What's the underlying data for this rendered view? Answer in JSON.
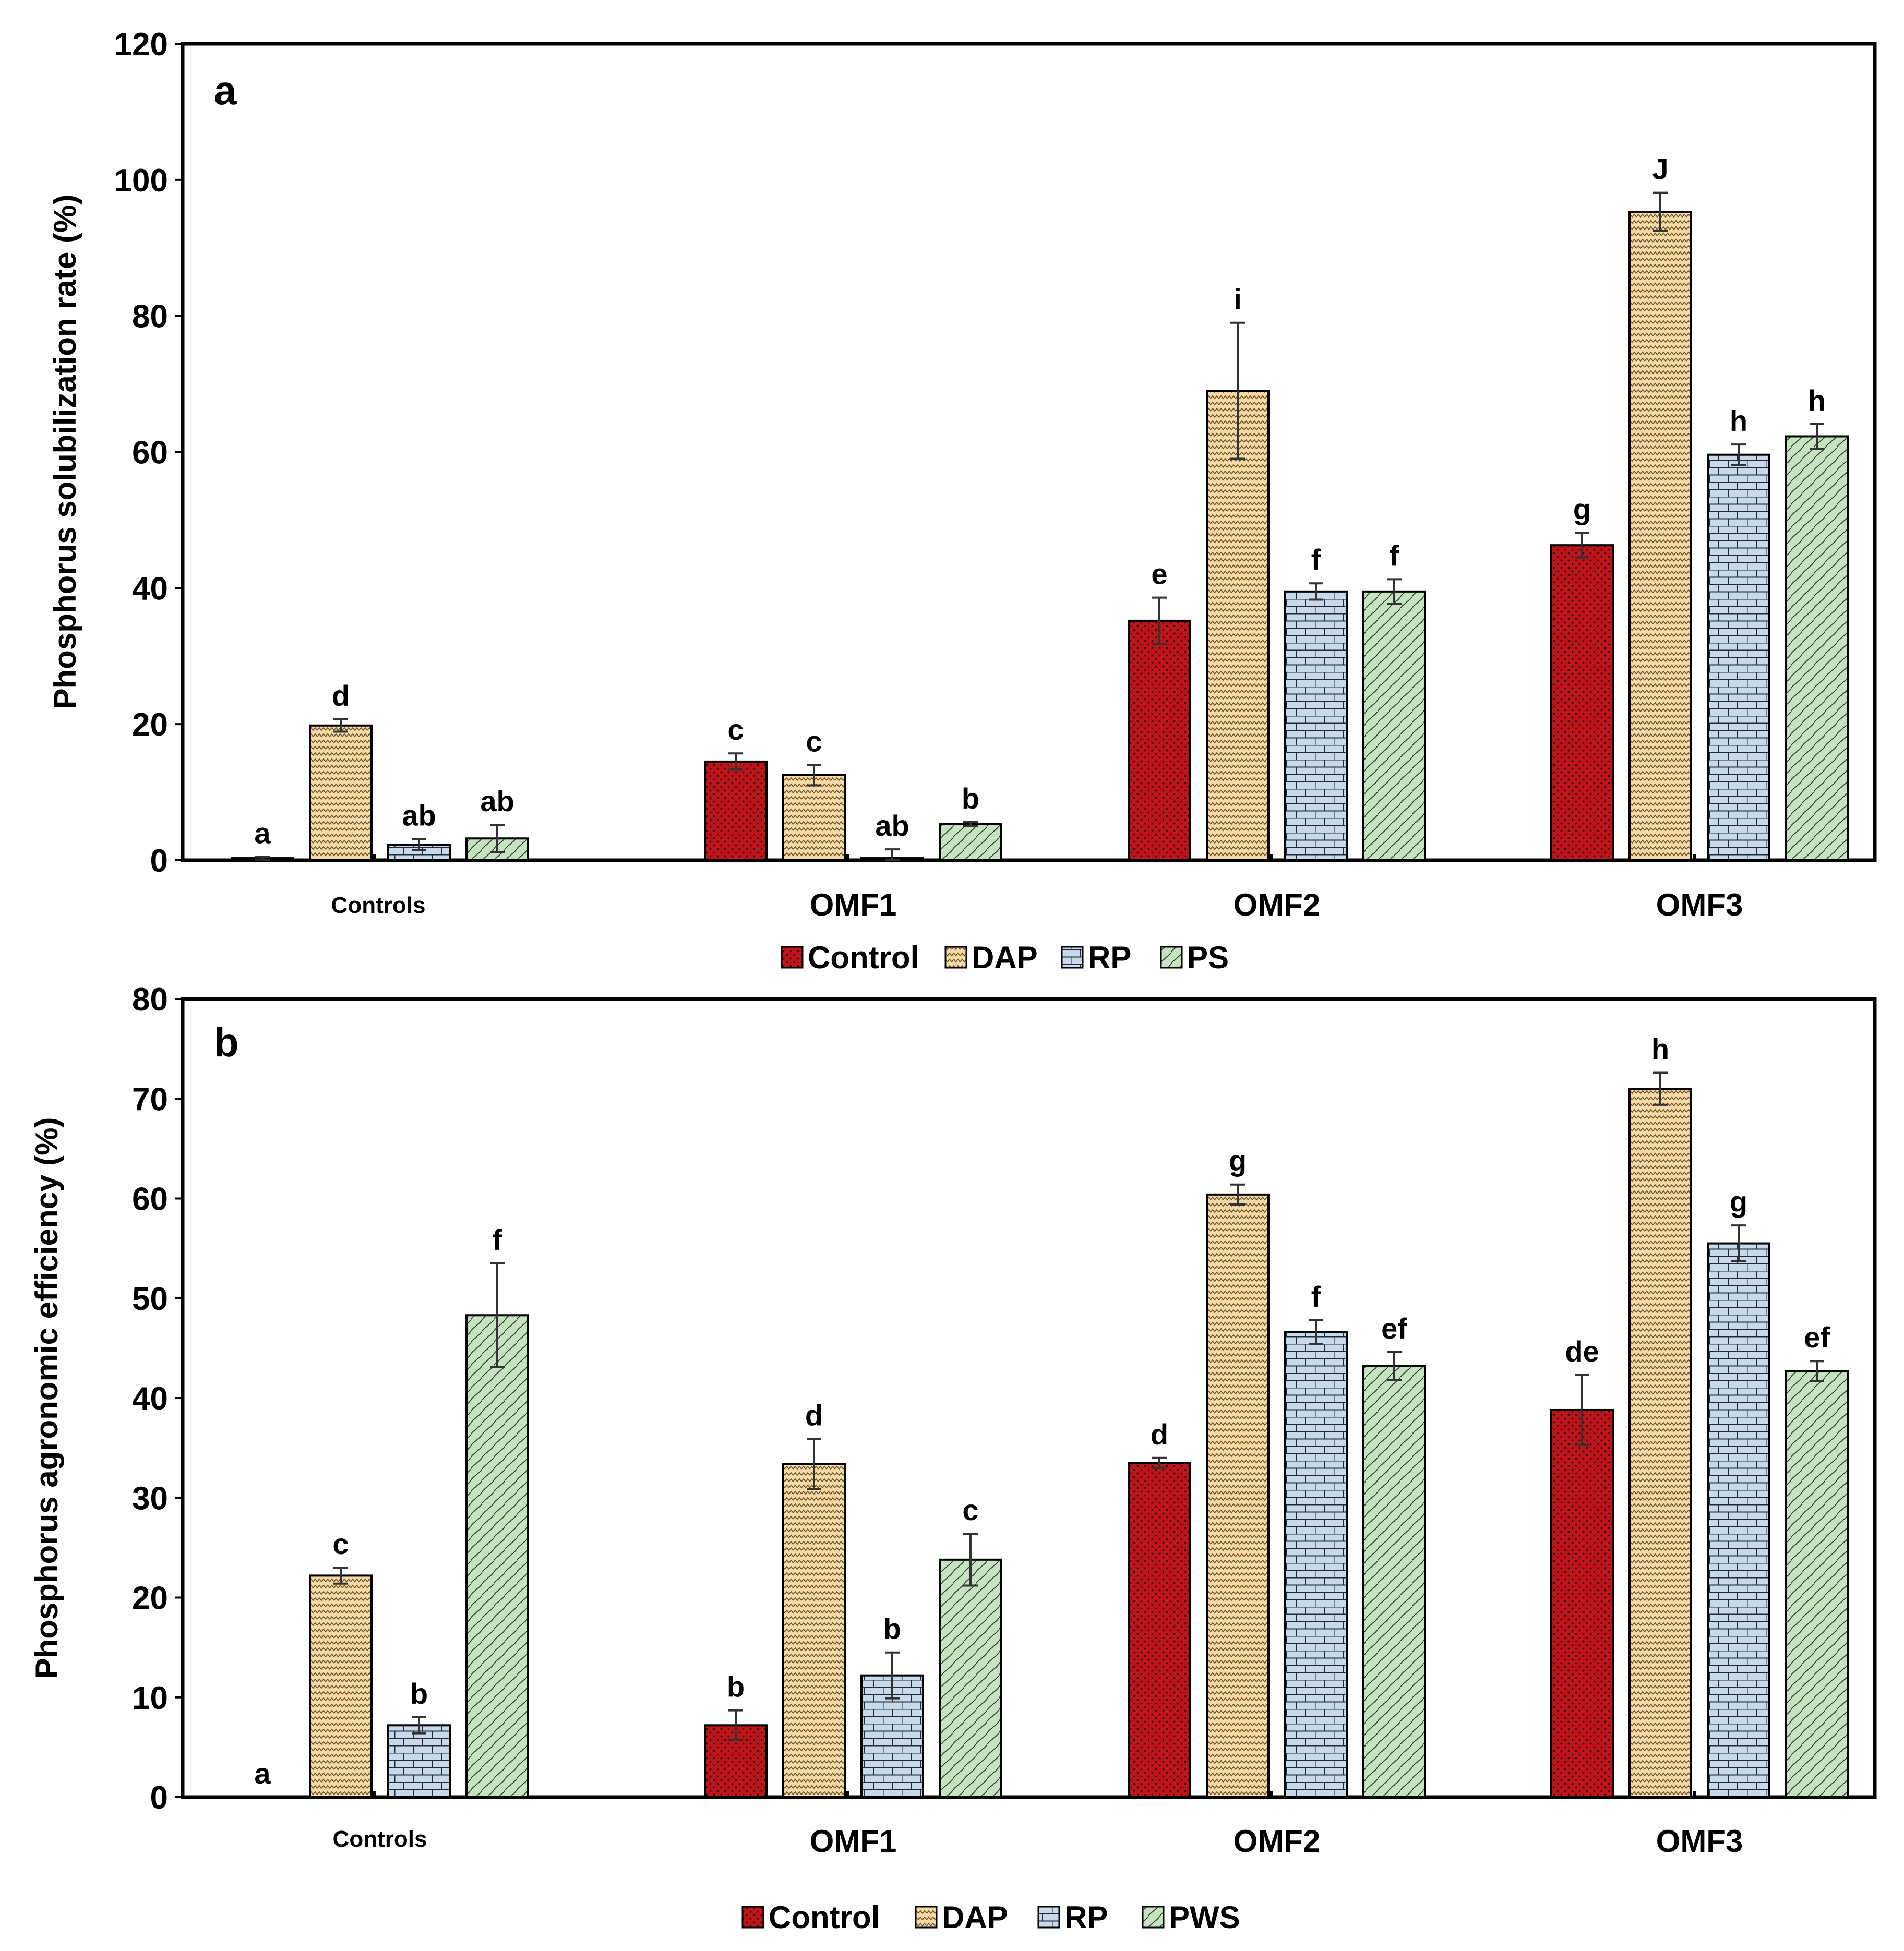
{
  "chart_data": [
    {
      "panel_label": "a",
      "type": "bar",
      "title": "",
      "xlabel": "",
      "ylabel": "Phosphorus solubilization rate (%)",
      "ylim": [
        0,
        120
      ],
      "yticks": [
        0,
        20,
        40,
        60,
        80,
        100,
        120
      ],
      "categories": [
        "Controls",
        "OMF1",
        "OMF2",
        "OMF3"
      ],
      "legend": [
        "Control",
        "DAP",
        "RP",
        "PS"
      ],
      "legend_position": "bottom-center",
      "series": [
        {
          "name": "Control",
          "color": "#c0141b",
          "pattern": "dots",
          "values": [
            0.3,
            14.5,
            35.2,
            46.3
          ],
          "errors": [
            0.2,
            1.2,
            3.4,
            1.8
          ],
          "letters": [
            "a",
            "c",
            "e",
            "g"
          ]
        },
        {
          "name": "DAP",
          "color": "#f6d9a4",
          "pattern": "zigzag",
          "values": [
            19.8,
            12.5,
            69.0,
            95.3
          ],
          "errors": [
            0.9,
            1.5,
            10.0,
            2.8
          ],
          "letters": [
            "d",
            "c",
            "i",
            "J"
          ]
        },
        {
          "name": "RP",
          "color": "#c8d9ea",
          "pattern": "bricks",
          "values": [
            2.3,
            0.3,
            39.5,
            59.6
          ],
          "errors": [
            0.8,
            1.3,
            1.2,
            1.5
          ],
          "letters": [
            "ab",
            "ab",
            "f",
            "h"
          ]
        },
        {
          "name": "PS",
          "color": "#c7e2c1",
          "pattern": "waves",
          "values": [
            3.2,
            5.3,
            39.5,
            62.3
          ],
          "errors": [
            2.0,
            0.3,
            1.8,
            1.8
          ],
          "letters": [
            "ab",
            "b",
            "f",
            "h"
          ]
        }
      ]
    },
    {
      "panel_label": "b",
      "type": "bar",
      "title": "",
      "xlabel": "",
      "ylabel": "Phosphorus agronomic efficiency (%)",
      "ylim": [
        0,
        80
      ],
      "yticks": [
        0,
        10,
        20,
        30,
        40,
        50,
        60,
        70,
        80
      ],
      "categories": [
        "Controls",
        "OMF1",
        "OMF2",
        "OMF3"
      ],
      "legend": [
        "Control",
        "DAP",
        "RP",
        "PWS"
      ],
      "legend_position": "bottom-center",
      "series": [
        {
          "name": "Control",
          "color": "#c0141b",
          "pattern": "dots",
          "values": [
            0,
            7.2,
            33.5,
            38.8
          ],
          "errors": [
            0,
            1.5,
            0.5,
            3.5
          ],
          "letters": [
            "a",
            "b",
            "d",
            "de"
          ]
        },
        {
          "name": "DAP",
          "color": "#f6d9a4",
          "pattern": "zigzag",
          "values": [
            22.2,
            33.4,
            60.4,
            71.0
          ],
          "errors": [
            0.8,
            2.5,
            1.0,
            1.6
          ],
          "letters": [
            "c",
            "d",
            "g",
            "h"
          ]
        },
        {
          "name": "RP",
          "color": "#c8d9ea",
          "pattern": "bricks",
          "values": [
            7.2,
            12.2,
            46.6,
            55.5
          ],
          "errors": [
            0.8,
            2.3,
            1.2,
            1.8
          ],
          "letters": [
            "b",
            "b",
            "f",
            "g"
          ]
        },
        {
          "name": "PWS",
          "color": "#c7e2c1",
          "pattern": "waves",
          "values": [
            48.3,
            23.8,
            43.2,
            42.7
          ],
          "errors": [
            5.2,
            2.6,
            1.4,
            1.0
          ],
          "letters": [
            "f",
            "c",
            "ef",
            "ef"
          ]
        }
      ]
    }
  ]
}
